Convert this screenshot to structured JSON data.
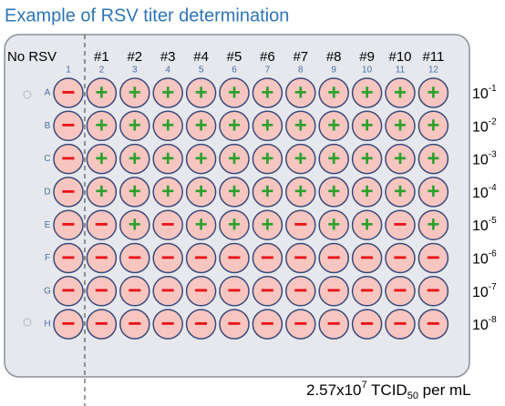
{
  "title": "Example of RSV titer determination",
  "column_labels": [
    "No RSV",
    "#1",
    "#2",
    "#3",
    "#4",
    "#5",
    "#6",
    "#7",
    "#8",
    "#9",
    "#10",
    "#11"
  ],
  "column_numbers": [
    "1",
    "2",
    "3",
    "4",
    "5",
    "6",
    "7",
    "8",
    "9",
    "10",
    "11",
    "12"
  ],
  "row_letters": [
    "A",
    "B",
    "C",
    "D",
    "E",
    "F",
    "G",
    "H"
  ],
  "dilutions": [
    {
      "base": "10",
      "exp": "-1"
    },
    {
      "base": "10",
      "exp": "-2"
    },
    {
      "base": "10",
      "exp": "-3"
    },
    {
      "base": "10",
      "exp": "-4"
    },
    {
      "base": "10",
      "exp": "-5"
    },
    {
      "base": "10",
      "exp": "-6"
    },
    {
      "base": "10",
      "exp": "-7"
    },
    {
      "base": "10",
      "exp": "-8"
    }
  ],
  "wells": [
    [
      "−",
      "+",
      "+",
      "+",
      "+",
      "+",
      "+",
      "+",
      "+",
      "+",
      "+",
      "+"
    ],
    [
      "−",
      "+",
      "+",
      "+",
      "+",
      "+",
      "+",
      "+",
      "+",
      "+",
      "+",
      "+"
    ],
    [
      "−",
      "+",
      "+",
      "+",
      "+",
      "+",
      "+",
      "+",
      "+",
      "+",
      "+",
      "+"
    ],
    [
      "−",
      "+",
      "+",
      "+",
      "+",
      "+",
      "+",
      "+",
      "+",
      "+",
      "+",
      "+"
    ],
    [
      "−",
      "−",
      "+",
      "−",
      "+",
      "+",
      "+",
      "−",
      "+",
      "+",
      "−",
      "+"
    ],
    [
      "−",
      "−",
      "−",
      "−",
      "−",
      "−",
      "−",
      "−",
      "−",
      "−",
      "−",
      "−"
    ],
    [
      "−",
      "−",
      "−",
      "−",
      "−",
      "−",
      "−",
      "−",
      "−",
      "−",
      "−",
      "−"
    ],
    [
      "−",
      "−",
      "−",
      "−",
      "−",
      "−",
      "−",
      "−",
      "−",
      "−",
      "−",
      "−"
    ]
  ],
  "result": {
    "mantissa": "2.57x10",
    "exp": "7",
    "unit": " TCID",
    "unit_sub": "50",
    "suffix": " per mL"
  }
}
